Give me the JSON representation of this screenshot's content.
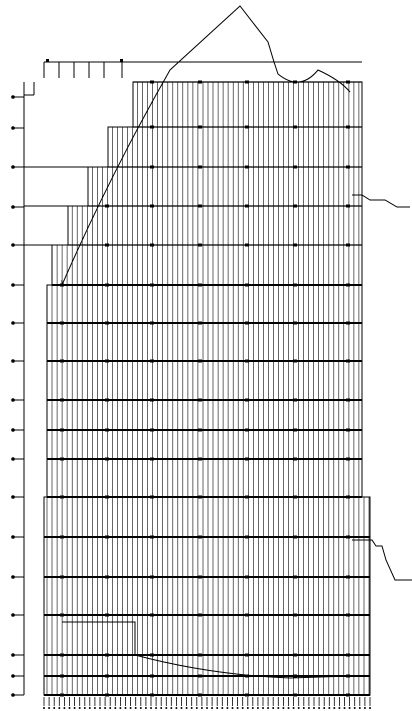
{
  "drawing": {
    "stroke_color": "#000000",
    "background_color": "#ffffff",
    "floor_count": 16,
    "column_grid_count": 64
  }
}
